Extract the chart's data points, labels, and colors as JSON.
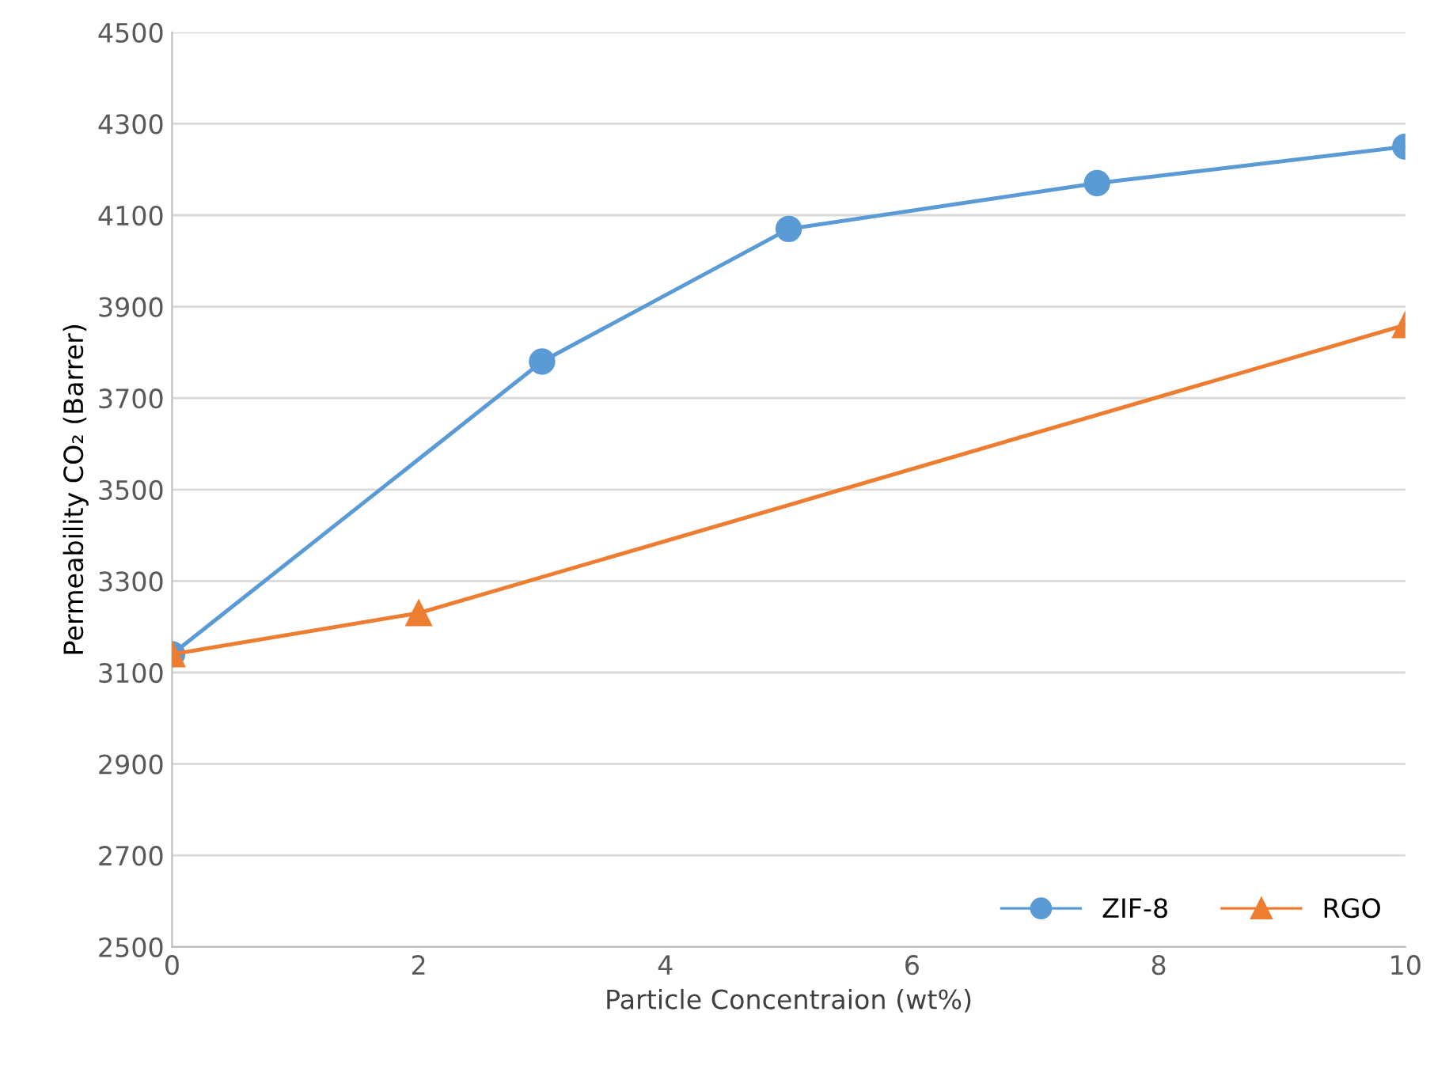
{
  "chart_data": {
    "type": "line",
    "xlabel": "Particle Concentraion (wt%)",
    "ylabel": "Permeability CO₂ (Barrer)",
    "xlim": [
      0,
      10
    ],
    "xticks": [
      0,
      2,
      4,
      6,
      8,
      10
    ],
    "ylim": [
      2500,
      4500
    ],
    "yticks": [
      2500,
      2700,
      2900,
      3100,
      3300,
      3500,
      3700,
      3900,
      4100,
      4300,
      4500
    ],
    "grid": "y",
    "legend": "bottom right",
    "series": [
      {
        "name": "ZIF-8",
        "color": "#5b9bd5",
        "marker": "circle",
        "x": [
          0,
          3,
          5,
          7.5,
          10
        ],
        "values": [
          3140,
          3780,
          4070,
          4170,
          4250
        ]
      },
      {
        "name": "RGO",
        "color": "#ed7d31",
        "marker": "triangle",
        "x": [
          0,
          2,
          10
        ],
        "values": [
          3140,
          3230,
          3860
        ]
      }
    ]
  }
}
